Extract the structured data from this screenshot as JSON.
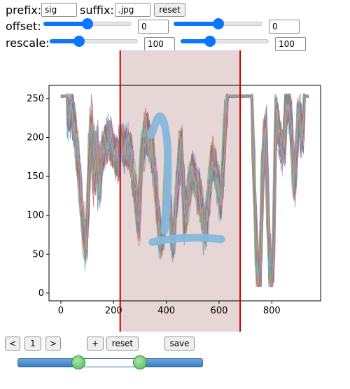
{
  "controls": {
    "prefix_label": "prefix:",
    "prefix_value": "sig",
    "suffix_label": "suffix:",
    "suffix_value": ".jpg",
    "reset_label": "reset",
    "offset_label": "offset:",
    "offset_value_1": "0",
    "offset_value_2": "0",
    "offset_slider_1_fraction": 0.5,
    "offset_slider_2_fraction": 0.5,
    "rescale_label": "rescale:",
    "rescale_value_1": "100",
    "rescale_value_2": "100",
    "rescale_slider_1_fraction": 0.33,
    "rescale_slider_2_fraction": 0.33
  },
  "chart_data": {
    "type": "line",
    "x_ticks": [
      0,
      200,
      400,
      600,
      800
    ],
    "y_ticks": [
      0,
      50,
      100,
      150,
      200,
      250
    ],
    "xlim": [
      -45,
      985
    ],
    "ylim": [
      -10,
      267
    ],
    "selection_range": [
      225,
      680
    ],
    "selection_color": "#e6d6d6",
    "selection_line_color": "#c00000",
    "annotation": "handwritten digit 1 drawn over signals",
    "series_colors": [
      "#4c72b0",
      "#dd8452",
      "#55a868",
      "#c44e52",
      "#8172b3",
      "#937860",
      "#da8bc3",
      "#8c8c8c",
      "#ccb974",
      "#64b5cd"
    ]
  },
  "bottom_bar": {
    "prev_label": "<",
    "page_value": "1",
    "next_label": ">",
    "plus_label": "+",
    "reset_label": "reset",
    "save_label": "save",
    "range_low_fraction": 0.33,
    "range_high_fraction": 0.66
  }
}
